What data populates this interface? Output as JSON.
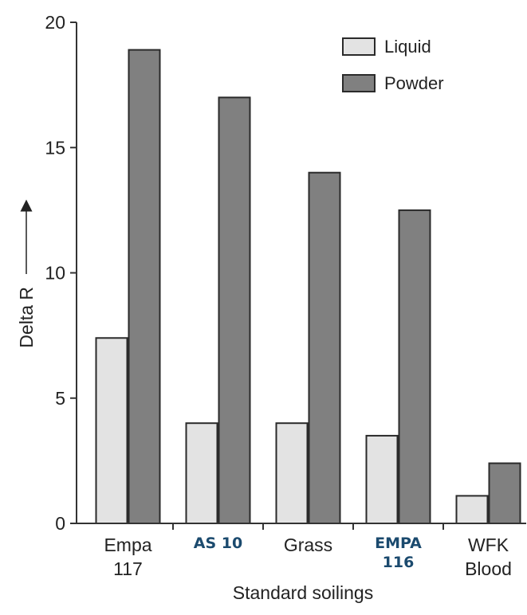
{
  "chart_data": {
    "type": "bar",
    "categories": [
      {
        "lines": [
          "Empa",
          "117"
        ],
        "style": "normal"
      },
      {
        "lines": [
          "AS 10"
        ],
        "style": "bold"
      },
      {
        "lines": [
          "Grass"
        ],
        "style": "normal"
      },
      {
        "lines": [
          "EMPA",
          "116"
        ],
        "style": "bold"
      },
      {
        "lines": [
          "WFK",
          "Blood"
        ],
        "style": "normal"
      }
    ],
    "series": [
      {
        "name": "Liquid",
        "color": "#e3e3e3",
        "values": [
          7.4,
          4.0,
          4.0,
          3.5,
          1.1
        ]
      },
      {
        "name": "Powder",
        "color": "#808080",
        "values": [
          18.9,
          17.0,
          14.0,
          12.5,
          2.4
        ]
      }
    ],
    "ylim": [
      0,
      20
    ],
    "yticks": [
      0,
      5,
      10,
      15,
      20
    ],
    "ylabel": "Delta R",
    "xlabel": "Standard soilings",
    "legend_position": "top-right",
    "grid": false
  }
}
